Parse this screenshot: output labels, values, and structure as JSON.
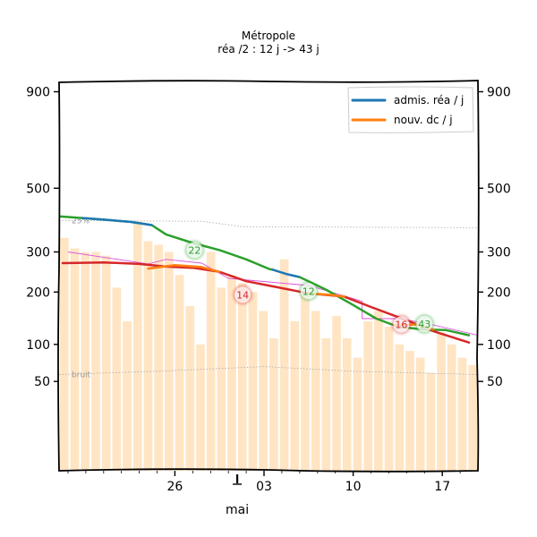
{
  "chart_data": {
    "type": "line",
    "title": "Métropole",
    "subtitle": "réa /2 : 12 j -> 43 j",
    "xlabel": "mai",
    "xlim": [
      19.5,
      43
    ],
    "ylim": [
      0,
      945
    ],
    "x_ticks": [
      {
        "x": 26,
        "label": "26"
      },
      {
        "x": 31,
        "label": "03"
      },
      {
        "x": 36,
        "label": "10"
      },
      {
        "x": 41,
        "label": "17"
      }
    ],
    "y_ticks": [
      50,
      100,
      200,
      300,
      500,
      900
    ],
    "marker": {
      "x": 29.5
    },
    "legend": {
      "placement": "top-right",
      "entries": [
        {
          "label": "admis. réa / j",
          "color": "#1f77b4"
        },
        {
          "label": "nouv. dc / j",
          "color": "#ff7f0e"
        }
      ]
    },
    "bars": {
      "color": "#ffe5c4",
      "values": [
        340,
        310,
        300,
        300,
        290,
        210,
        140,
        390,
        330,
        320,
        300,
        240,
        170,
        100,
        300,
        210,
        240,
        220,
        200,
        160,
        110,
        280,
        140,
        200,
        160,
        110,
        150,
        110,
        80,
        140,
        160,
        130,
        100,
        90,
        80,
        60,
        120,
        100,
        80,
        70
      ]
    },
    "reference_lines": [
      {
        "label": "25%",
        "color": "#aaaaaa",
        "points": [
          [
            19.5,
            392
          ],
          [
            27.5,
            390
          ],
          [
            29.8,
            373
          ],
          [
            43,
            370
          ]
        ]
      },
      {
        "label": "bruit",
        "color": "#aaaaaa",
        "points": [
          [
            19.5,
            58
          ],
          [
            25,
            62
          ],
          [
            31,
            68
          ],
          [
            36,
            62
          ],
          [
            43,
            58
          ]
        ]
      }
    ],
    "series": [
      {
        "color": "#2ca02c",
        "points": [
          [
            19.6,
            405
          ],
          [
            20.8,
            400
          ],
          [
            22,
            395
          ],
          [
            23.5,
            388
          ],
          [
            24.7,
            378
          ],
          [
            25.5,
            350
          ],
          [
            27,
            325
          ],
          [
            28.5,
            305
          ],
          [
            30,
            280
          ],
          [
            31.3,
            255
          ],
          [
            31.5,
            253
          ]
        ]
      },
      {
        "color": "#1f77b4",
        "points": [
          [
            20.8,
            400
          ],
          [
            22,
            395
          ],
          [
            23.5,
            388
          ],
          [
            24.7,
            378
          ]
        ]
      },
      {
        "color": "#1f77b4",
        "points": [
          [
            31.5,
            253
          ],
          [
            32.3,
            242
          ],
          [
            33,
            235
          ]
        ]
      },
      {
        "color": "#2ca02c",
        "points": [
          [
            33,
            235
          ],
          [
            34.5,
            205
          ],
          [
            36,
            172
          ],
          [
            37.3,
            145
          ],
          [
            38.5,
            130
          ],
          [
            40,
            125
          ],
          [
            41.2,
            124
          ],
          [
            42.5,
            115
          ]
        ]
      },
      {
        "color": "#d62728",
        "points": [
          [
            19.7,
            270
          ],
          [
            22,
            272
          ],
          [
            24,
            268
          ],
          [
            25.5,
            261
          ],
          [
            27,
            258
          ],
          [
            28.5,
            248
          ],
          [
            30,
            225
          ],
          [
            31.6,
            212
          ],
          [
            33.5,
            197
          ],
          [
            35.5,
            190
          ],
          [
            37,
            168
          ],
          [
            39,
            142
          ],
          [
            40.5,
            122
          ],
          [
            42.5,
            103
          ]
        ]
      },
      {
        "color": "#ff7f0e",
        "points": [
          [
            24.5,
            256
          ],
          [
            26,
            265
          ],
          [
            27.5,
            260
          ],
          [
            28.5,
            248
          ]
        ]
      },
      {
        "color": "#ff7f0e",
        "points": [
          [
            33.5,
            197
          ],
          [
            34.7,
            194
          ],
          [
            35.5,
            190
          ]
        ]
      },
      {
        "color": "#ff7f0e",
        "points": [
          [
            38.3,
            133
          ],
          [
            39.5,
            134
          ],
          [
            40.5,
            125
          ]
        ]
      }
    ],
    "extra_line": {
      "color": "#dd55dd",
      "points": [
        [
          20,
          300
        ],
        [
          24.5,
          268
        ],
        [
          25.5,
          280
        ],
        [
          27.5,
          270
        ],
        [
          29,
          232
        ],
        [
          33.5,
          215
        ],
        [
          36.5,
          180
        ],
        [
          36.5,
          145
        ],
        [
          38.5,
          145
        ],
        [
          40,
          137
        ],
        [
          43,
          115
        ]
      ]
    },
    "annotations": [
      {
        "x": 27.1,
        "y": 305,
        "text": "22",
        "color": "#2ca02c"
      },
      {
        "x": 29.8,
        "y": 194,
        "text": "14",
        "color": "#d62728"
      },
      {
        "x": 33.5,
        "y": 202,
        "text": "12",
        "color": "#2ca02c"
      },
      {
        "x": 38.7,
        "y": 134,
        "text": "16",
        "color": "#d62728"
      },
      {
        "x": 40,
        "y": 135,
        "text": "43",
        "color": "#2ca02c"
      }
    ]
  }
}
